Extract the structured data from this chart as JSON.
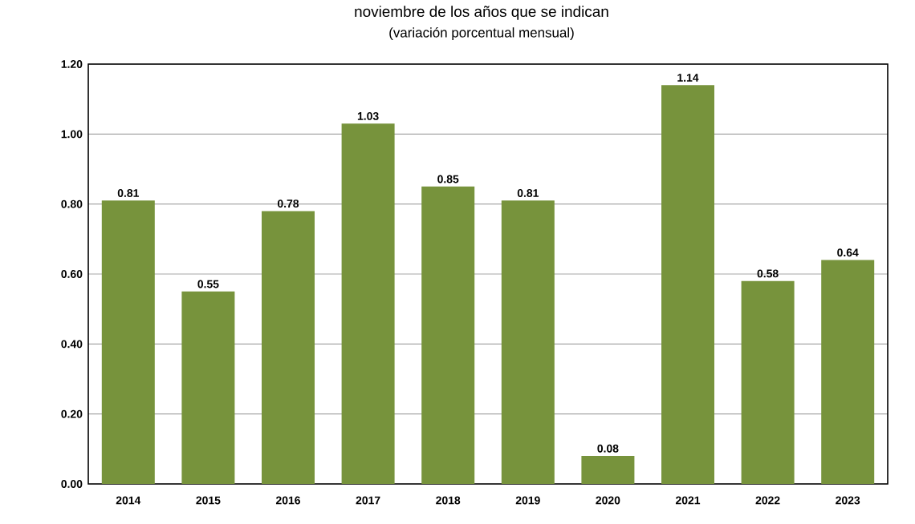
{
  "chart_data": {
    "type": "bar",
    "title": "noviembre de los años que se indican",
    "subtitle": "(variación porcentual mensual)",
    "categories": [
      "2014",
      "2015",
      "2016",
      "2017",
      "2018",
      "2019",
      "2020",
      "2021",
      "2022",
      "2023"
    ],
    "values": [
      0.81,
      0.55,
      0.78,
      1.03,
      0.85,
      0.81,
      0.08,
      1.14,
      0.58,
      0.64
    ],
    "value_labels": [
      "0.81",
      "0.55",
      "0.78",
      "1.03",
      "0.85",
      "0.81",
      "0.08",
      "1.14",
      "0.58",
      "0.64"
    ],
    "color": "#77933c",
    "ylim": [
      0,
      1.2
    ],
    "yticks": [
      {
        "value": 0,
        "label": "0.00"
      },
      {
        "value": 0.2,
        "label": "0.20"
      },
      {
        "value": 0.4,
        "label": "0.40"
      },
      {
        "value": 0.6,
        "label": "0.60"
      },
      {
        "value": 0.8,
        "label": "0.80"
      },
      {
        "value": 1.0,
        "label": "1.00"
      },
      {
        "value": 1.2,
        "label": "1.20"
      }
    ],
    "grid": "y"
  }
}
